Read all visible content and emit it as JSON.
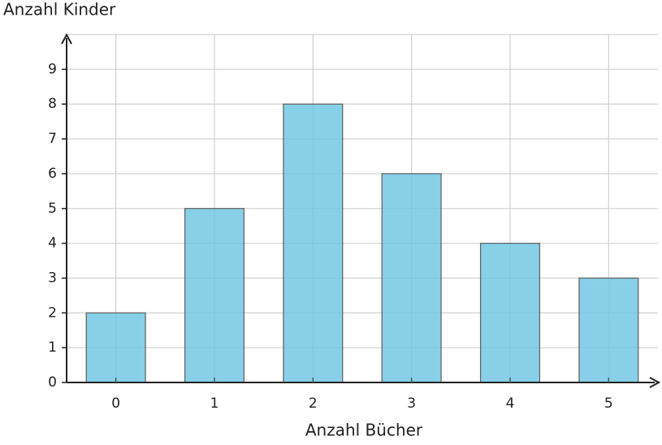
{
  "chart_data": {
    "type": "bar",
    "x_label": "Anzahl Bücher",
    "y_label": "Anzahl Kinder",
    "categories": [
      "0",
      "1",
      "2",
      "3",
      "4",
      "5"
    ],
    "values": [
      2,
      5,
      8,
      6,
      4,
      3
    ],
    "color": "#6cc6e3",
    "ylim": [
      0,
      10
    ],
    "yticks": [
      0,
      1,
      2,
      3,
      4,
      5,
      6,
      7,
      8,
      9
    ],
    "grid": true
  }
}
